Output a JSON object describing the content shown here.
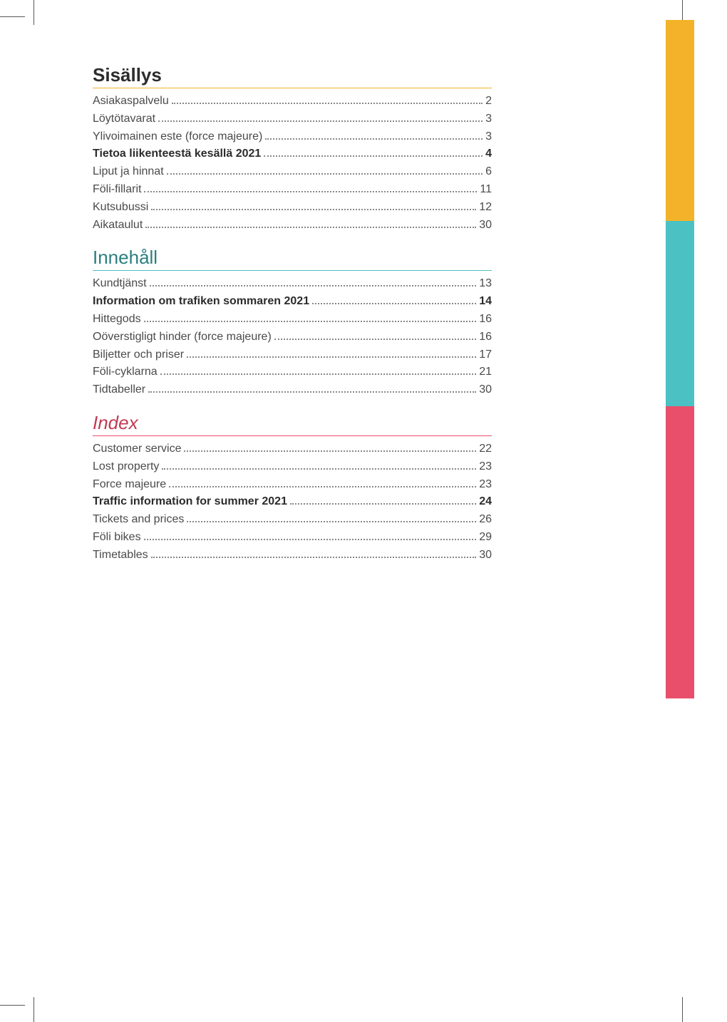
{
  "colors": {
    "page_bg": "#ffffff",
    "body_text": "#4a4a4a",
    "bold_text": "#2c2c2c",
    "dots": "#888888",
    "yellow": "#f3b229",
    "teal": "#4bc1c3",
    "pink": "#e94f6a",
    "heading_sv": "#2c7f80",
    "heading_en": "#c03b54"
  },
  "typography": {
    "heading_fontsize": 26,
    "row_fontsize": 16,
    "font_family": "Arial"
  },
  "sections": [
    {
      "key": "fi",
      "heading": "Sisällys",
      "heading_class": "h-fi",
      "entries": [
        {
          "label": "Asiakaspalvelu",
          "page": "2",
          "bold": false
        },
        {
          "label": "Löytötavarat",
          "page": "3",
          "bold": false
        },
        {
          "label": "Ylivoimainen este (force majeure)",
          "page": "3",
          "bold": false
        },
        {
          "label": "Tietoa liikenteestä kesällä 2021",
          "page": "4",
          "bold": true
        },
        {
          "label": "Liput ja hinnat",
          "page": "6",
          "bold": false
        },
        {
          "label": "Föli-fillarit",
          "page": "11",
          "bold": false
        },
        {
          "label": "Kutsubussi",
          "page": "12",
          "bold": false
        },
        {
          "label": "Aikataulut",
          "page": "30",
          "bold": false
        }
      ]
    },
    {
      "key": "sv",
      "heading": "Innehåll",
      "heading_class": "h-sv",
      "entries": [
        {
          "label": "Kundtjänst",
          "page": "13",
          "bold": false
        },
        {
          "label": "Information om trafiken sommaren 2021",
          "page": "14",
          "bold": true
        },
        {
          "label": "Hittegods",
          "page": "16",
          "bold": false
        },
        {
          "label": "Oöverstigligt hinder (force majeure)",
          "page": "16",
          "bold": false
        },
        {
          "label": "Biljetter och priser",
          "page": "17",
          "bold": false
        },
        {
          "label": "Föli-cyklarna",
          "page": "21",
          "bold": false
        },
        {
          "label": "Tidtabeller",
          "page": "30",
          "bold": false
        }
      ]
    },
    {
      "key": "en",
      "heading": "Index",
      "heading_class": "h-en",
      "entries": [
        {
          "label": "Customer service",
          "page": "22",
          "bold": false
        },
        {
          "label": "Lost property",
          "page": "23",
          "bold": false
        },
        {
          "label": "Force majeure",
          "page": "23",
          "bold": false
        },
        {
          "label": "Traffic information for summer 2021",
          "page": "24",
          "bold": true
        },
        {
          "label": "Tickets and prices",
          "page": "26",
          "bold": false
        },
        {
          "label": "Föli bikes",
          "page": "29",
          "bold": false
        },
        {
          "label": "Timetables",
          "page": "30",
          "bold": false
        }
      ]
    }
  ]
}
